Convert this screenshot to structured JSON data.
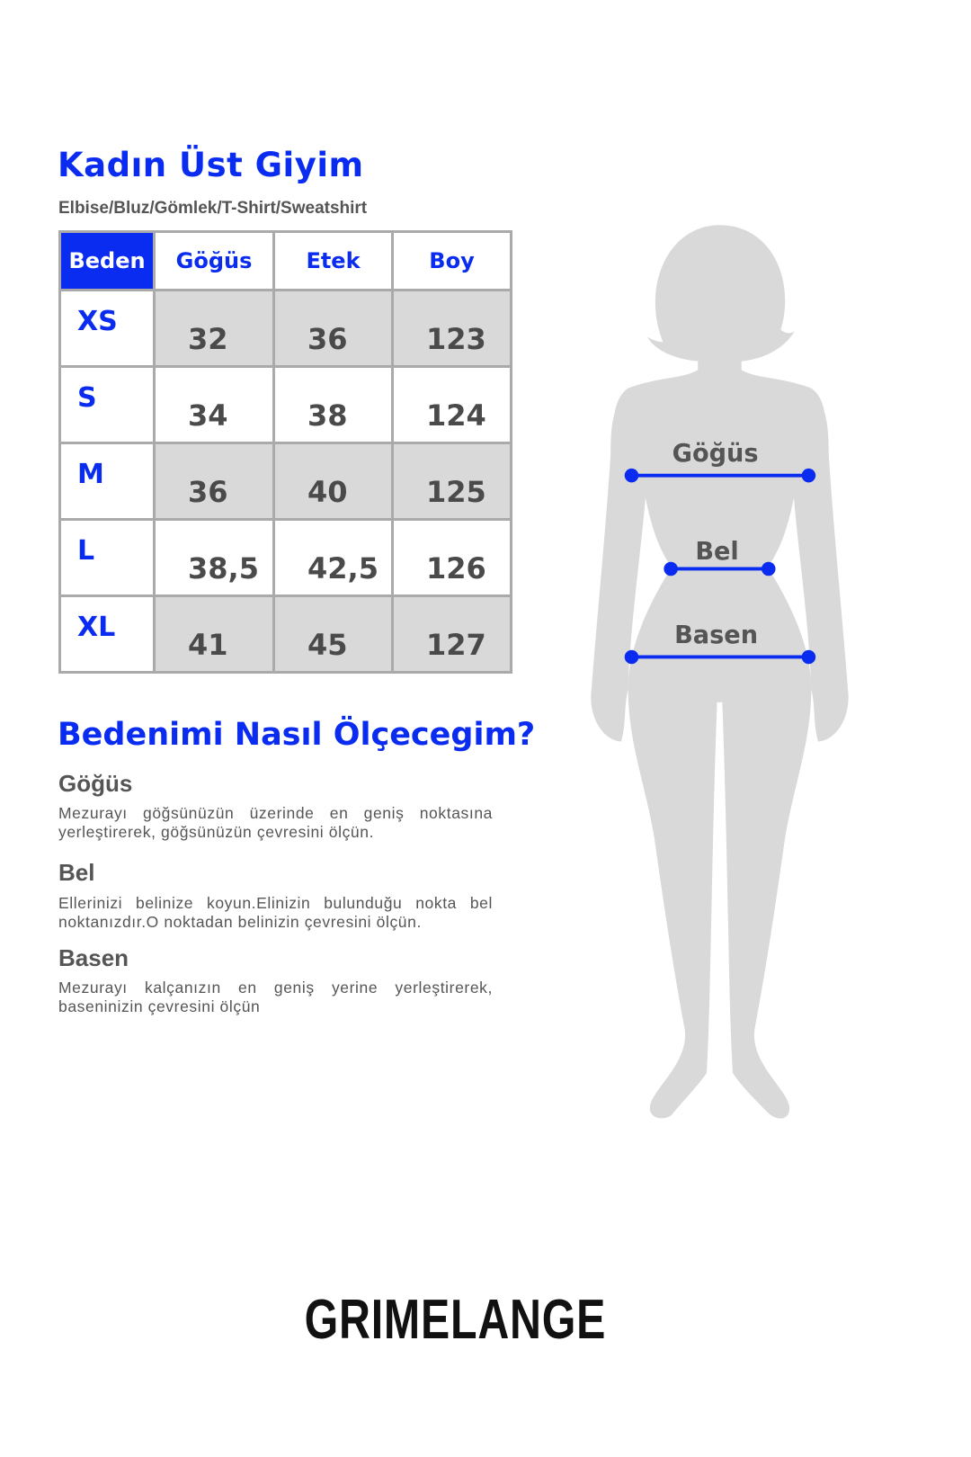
{
  "title": "Kadın Üst Giyim",
  "subtitle": "Elbise/Bluz/Gömlek/T-Shirt/Sweatshirt",
  "table": {
    "headers": [
      "Beden",
      "Göğüs",
      "Etek",
      "Boy"
    ],
    "rows": [
      {
        "size": "XS",
        "gogus": "32",
        "etek": "36",
        "boy": "123"
      },
      {
        "size": "S",
        "gogus": "34",
        "etek": "38",
        "boy": "124"
      },
      {
        "size": "M",
        "gogus": "36",
        "etek": "40",
        "boy": "125"
      },
      {
        "size": "L",
        "gogus": "38,5",
        "etek": "42,5",
        "boy": "126"
      },
      {
        "size": "XL",
        "gogus": "41",
        "etek": "45",
        "boy": "127"
      }
    ]
  },
  "howto": {
    "title": "Bedenimi Nasıl Ölçecegim?",
    "sections": [
      {
        "heading": "Göğüs",
        "text": "Mezurayı göğsünüzün üzerinde en geniş noktasına yerleştirerek, göğsünüzün çevresini ölçün."
      },
      {
        "heading": "Bel",
        "text": "Ellerinizi belinize koyun.Elinizin bulunduğu nokta bel noktanızdır.O noktadan belinizin çevresini ölçün."
      },
      {
        "heading": "Basen",
        "text": "Mezurayı kalçanızın en geniş yerine yerleştirerek, baseninizin çevresini ölçün"
      }
    ]
  },
  "figure": {
    "labels": {
      "chest": "Göğüs",
      "waist": "Bel",
      "hip": "Basen"
    },
    "silhouette_color": "#d9d9d9",
    "line_color": "#0a2cf0"
  },
  "brand": "GRIMELANGE",
  "colors": {
    "accent": "#0a2cf0",
    "cell_gray": "#d9d9d9",
    "border": "#aaaaaa",
    "text": "#555555"
  }
}
